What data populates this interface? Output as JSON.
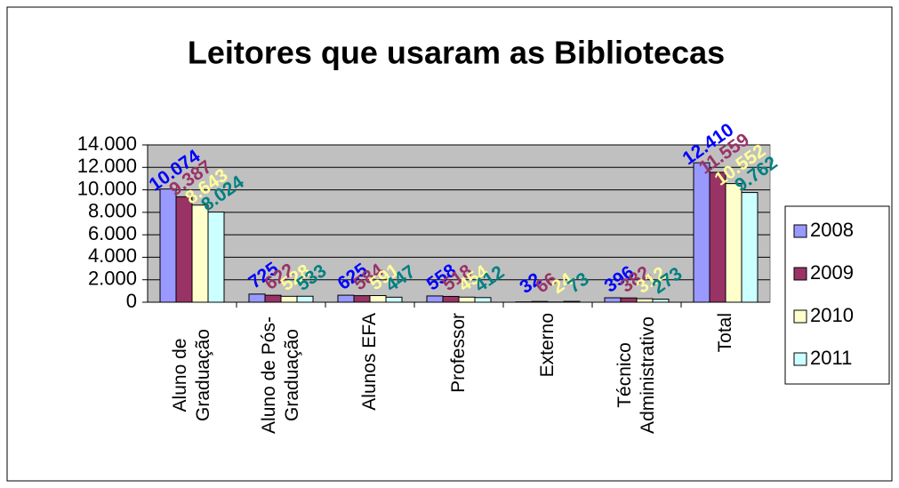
{
  "chart_data": {
    "type": "bar",
    "title": "Leitores que usaram as Bibliotecas",
    "categories": [
      "Aluno de Graduação",
      "Aluno de Pós-Graduação",
      "Alunos EFA",
      "Professor",
      "Externo",
      "Técnico Administrativo",
      "Total"
    ],
    "series": [
      {
        "name": "2008",
        "color": "#9999FF",
        "label_color": "#0000FF",
        "values": [
          10074,
          725,
          625,
          558,
          32,
          396,
          12410
        ],
        "value_labels": [
          "10.074",
          "725",
          "625",
          "558",
          "32",
          "396",
          "12.410"
        ]
      },
      {
        "name": "2009",
        "color": "#993366",
        "label_color": "#993366",
        "values": [
          9387,
          622,
          584,
          518,
          66,
          382,
          11559
        ],
        "value_labels": [
          "9.387",
          "622",
          "584",
          "518",
          "66",
          "382",
          "11.559"
        ]
      },
      {
        "name": "2010",
        "color": "#FFFFCC",
        "label_color": "#FFFF99",
        "values": [
          8643,
          528,
          591,
          454,
          24,
          312,
          10552
        ],
        "value_labels": [
          "8.643",
          "528",
          "591",
          "454",
          "24",
          "312",
          "10.552"
        ]
      },
      {
        "name": "2011",
        "color": "#CCFFFF",
        "label_color": "#008080",
        "values": [
          8024,
          533,
          447,
          412,
          73,
          273,
          9762
        ],
        "value_labels": [
          "8.024",
          "533",
          "447",
          "412",
          "73",
          "273",
          "9.762"
        ]
      }
    ],
    "ylim": [
      0,
      14000
    ],
    "yticks": [
      0,
      {
        "value": 2000,
        "label": "2.000"
      },
      {
        "value": 4000,
        "label": "4.000"
      },
      {
        "value": 6000,
        "label": "6.000"
      },
      {
        "value": 8000,
        "label": "8.000"
      },
      {
        "value": 10000,
        "label": "10.000"
      },
      {
        "value": 12000,
        "label": "12.000"
      },
      {
        "value": 14000,
        "label": "14.000"
      }
    ],
    "grid": true,
    "legend": "right"
  }
}
